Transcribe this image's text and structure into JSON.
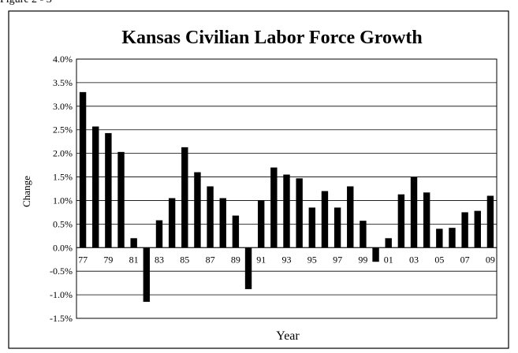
{
  "figure_label": "Figure 2 - 3",
  "chart_data": {
    "type": "bar",
    "title": "Kansas Civilian Labor Force Growth",
    "xlabel": "Year",
    "ylabel": "Change",
    "ylim": [
      -1.5,
      4.0
    ],
    "y_ticks": [
      "4.0%",
      "3.5%",
      "3.0%",
      "2.5%",
      "2.0%",
      "1.5%",
      "1.0%",
      "0.5%",
      "0.0%",
      "-0.5%",
      "-1.0%",
      "-1.5%"
    ],
    "grid": true,
    "categories": [
      "77",
      "78",
      "79",
      "80",
      "81",
      "82",
      "83",
      "84",
      "85",
      "86",
      "87",
      "88",
      "89",
      "90",
      "91",
      "92",
      "93",
      "94",
      "95",
      "96",
      "97",
      "98",
      "99",
      "00",
      "01",
      "02",
      "03",
      "04",
      "05",
      "06",
      "07",
      "08",
      "09"
    ],
    "category_labels_shown": [
      "77",
      "79",
      "81",
      "83",
      "85",
      "87",
      "89",
      "91",
      "93",
      "95",
      "97",
      "99",
      "01",
      "03",
      "05",
      "07",
      "09"
    ],
    "values": [
      3.3,
      2.57,
      2.43,
      2.03,
      0.2,
      -1.15,
      0.58,
      1.05,
      2.13,
      1.6,
      1.3,
      1.05,
      0.68,
      -0.88,
      1.0,
      1.7,
      1.55,
      1.47,
      0.85,
      1.2,
      0.85,
      1.3,
      0.57,
      -0.3,
      0.2,
      1.13,
      1.5,
      1.17,
      0.4,
      0.42,
      0.75,
      0.78,
      1.1
    ],
    "bar_color": "#000000"
  }
}
